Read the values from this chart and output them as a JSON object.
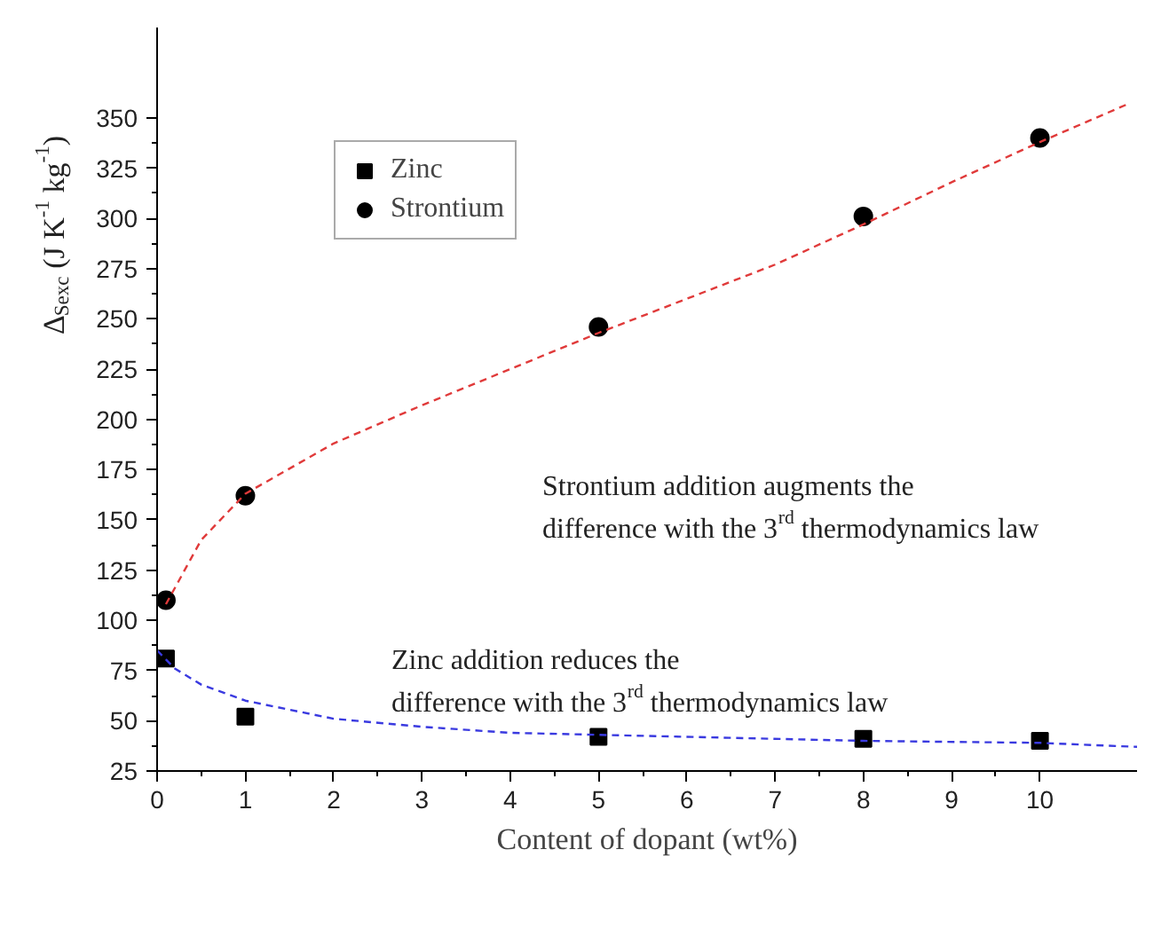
{
  "chart_data": {
    "type": "scatter",
    "xlabel": "Content of dopant (wt%)",
    "ylabel": "Δ$_{Sexc}$ (J K$^{-1}$ kg$^{-1}$)",
    "annotations": [
      "Strontium addition augments the\ndifference with the 3$^{rd}$ thermodynamics law",
      "Zinc addition reduces the\ndifference with the 3$^{rd}$ thermodynamics law"
    ],
    "xlim": [
      0,
      11.1
    ],
    "ylim": [
      25,
      395
    ],
    "xticks": [
      0,
      1,
      2,
      3,
      4,
      5,
      6,
      7,
      8,
      9,
      10
    ],
    "yticks": [
      25,
      50,
      75,
      100,
      125,
      150,
      175,
      200,
      225,
      250,
      275,
      300,
      325,
      350
    ],
    "grid": false,
    "legend": "top left",
    "x": [
      0.1,
      1,
      5,
      8,
      10
    ],
    "series": [
      {
        "name": "Zinc",
        "color": "#000000",
        "marker": "square",
        "values": [
          81,
          52,
          42,
          41,
          40
        ]
      },
      {
        "name": "Strontium",
        "color": "#000000",
        "marker": "circle",
        "values": [
          110,
          162,
          246,
          301,
          340
        ]
      },
      {
        "type": "line",
        "color": "#e03a3a",
        "line_style": "dashed",
        "x": [
          0.1,
          0.5,
          1,
          2,
          3,
          4,
          5,
          6,
          7,
          8,
          9,
          10,
          11
        ],
        "values": [
          108,
          140,
          163,
          188,
          207,
          225,
          243,
          260,
          277,
          297,
          318,
          338,
          357
        ]
      },
      {
        "type": "line",
        "color": "#3a3ae0",
        "line_style": "dashed",
        "x": [
          0,
          0.2,
          0.5,
          1,
          2,
          3,
          4,
          5,
          6,
          8,
          10,
          11.1
        ],
        "values": [
          85,
          76,
          68,
          60,
          51,
          47,
          44,
          43,
          42,
          40,
          39,
          37
        ]
      }
    ]
  }
}
